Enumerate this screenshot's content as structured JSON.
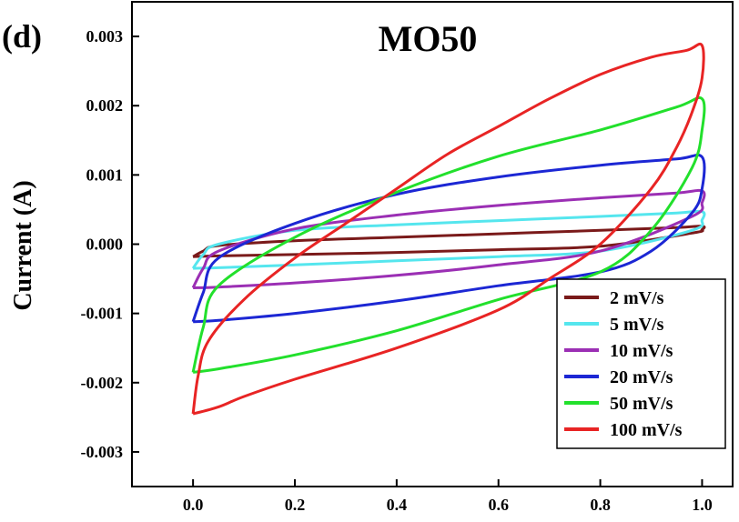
{
  "chart_data": {
    "type": "line",
    "panel_label": "(d)",
    "title": "MO50",
    "xlabel": "",
    "ylabel": "Current (A)",
    "xlim": [
      -0.12,
      1.06
    ],
    "ylim": [
      -0.0035,
      0.0035
    ],
    "x_ticks": [
      0.0,
      0.2,
      0.4,
      0.6,
      0.8,
      1.0
    ],
    "x_tick_labels": [
      "0.0",
      "0.2",
      "0.4",
      "0.6",
      "0.8",
      "1.0"
    ],
    "y_ticks": [
      0.003,
      0.002,
      0.001,
      0.0,
      -0.001,
      -0.002,
      -0.003
    ],
    "y_tick_labels": [
      "0.003",
      "0.002",
      "0.001",
      "0.000",
      "-0.001",
      "-0.002",
      "-0.003"
    ],
    "grid": false,
    "legend_position": "bottom-right",
    "series": [
      {
        "name": "2 mV/s",
        "color": "#7a1a1a",
        "x": [
          0.0,
          0.02,
          0.05,
          0.2,
          0.4,
          0.6,
          0.8,
          0.95,
          1.0,
          1.0,
          0.98,
          0.8,
          0.6,
          0.4,
          0.2,
          0.05,
          0.0
        ],
        "y": [
          -0.00018,
          -0.0001,
          -2e-05,
          5e-05,
          0.0001,
          0.00015,
          0.0002,
          0.00024,
          0.00026,
          0.00021,
          0.00016,
          -3e-05,
          -8e-05,
          -0.00012,
          -0.00015,
          -0.00017,
          -0.00018
        ]
      },
      {
        "name": "5 mV/s",
        "color": "#55e6ee",
        "x": [
          0.0,
          0.02,
          0.05,
          0.2,
          0.4,
          0.6,
          0.8,
          0.95,
          1.0,
          1.0,
          0.98,
          0.8,
          0.6,
          0.4,
          0.2,
          0.05,
          0.0
        ],
        "y": [
          -0.00035,
          -0.00015,
          0.0,
          0.0002,
          0.00028,
          0.00034,
          0.0004,
          0.00045,
          0.00047,
          0.00035,
          0.0002,
          -0.0001,
          -0.00018,
          -0.00024,
          -0.0003,
          -0.00034,
          -0.00035
        ]
      },
      {
        "name": "10 mV/s",
        "color": "#9b2fb4",
        "x": [
          0.0,
          0.02,
          0.05,
          0.2,
          0.4,
          0.6,
          0.8,
          0.95,
          1.0,
          1.0,
          0.98,
          0.8,
          0.6,
          0.4,
          0.2,
          0.05,
          0.0
        ],
        "y": [
          -0.00063,
          -0.00035,
          -0.0001,
          0.00022,
          0.00042,
          0.00056,
          0.00067,
          0.00074,
          0.00077,
          0.0006,
          0.0004,
          -0.0001,
          -0.0003,
          -0.00045,
          -0.00056,
          -0.00062,
          -0.00063
        ]
      },
      {
        "name": "20 mV/s",
        "color": "#1c27d4",
        "x": [
          0.0,
          0.02,
          0.05,
          0.2,
          0.4,
          0.6,
          0.8,
          0.95,
          1.0,
          1.0,
          0.98,
          0.9,
          0.8,
          0.6,
          0.4,
          0.2,
          0.05,
          0.0
        ],
        "y": [
          -0.00112,
          -0.0007,
          -0.0002,
          0.0003,
          0.00072,
          0.00097,
          0.00114,
          0.00123,
          0.00126,
          0.0008,
          0.00045,
          -0.0001,
          -0.0004,
          -0.0006,
          -0.00082,
          -0.001,
          -0.0011,
          -0.00112
        ]
      },
      {
        "name": "50 mV/s",
        "color": "#22e02c",
        "x": [
          0.0,
          0.02,
          0.05,
          0.2,
          0.4,
          0.6,
          0.8,
          0.95,
          1.0,
          1.0,
          0.98,
          0.9,
          0.8,
          0.6,
          0.4,
          0.2,
          0.05,
          0.0
        ],
        "y": [
          -0.00185,
          -0.0012,
          -0.0006,
          0.0001,
          0.00075,
          0.00127,
          0.00165,
          0.00198,
          0.0021,
          0.00165,
          0.0011,
          0.0002,
          -0.0004,
          -0.0008,
          -0.00125,
          -0.0016,
          -0.0018,
          -0.00185
        ]
      },
      {
        "name": "100 mV/s",
        "color": "#e82424",
        "x": [
          0.0,
          0.01,
          0.03,
          0.1,
          0.2,
          0.3,
          0.4,
          0.5,
          0.6,
          0.7,
          0.8,
          0.9,
          0.97,
          1.0,
          1.0,
          0.98,
          0.95,
          0.9,
          0.8,
          0.7,
          0.6,
          0.4,
          0.2,
          0.1,
          0.05,
          0.0
        ],
        "y": [
          -0.00245,
          -0.0019,
          -0.0014,
          -0.0008,
          -0.0002,
          0.0003,
          0.0008,
          0.0013,
          0.0017,
          0.0021,
          0.00245,
          0.0027,
          0.0028,
          0.00287,
          0.0024,
          0.0019,
          0.0014,
          0.0008,
          0.0,
          -0.0005,
          -0.00095,
          -0.0015,
          -0.00195,
          -0.0022,
          -0.00235,
          -0.00245
        ]
      }
    ]
  }
}
